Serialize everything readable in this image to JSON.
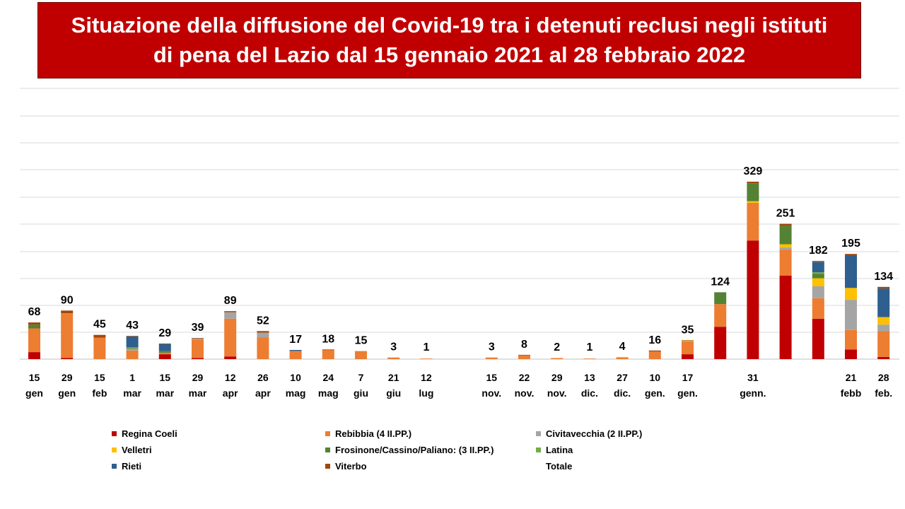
{
  "title": {
    "line1": "Situazione della diffusione del Covid-19 tra i detenuti reclusi negli istituti",
    "line2": "di pena del Lazio dal 15 gennaio 2021 al 28 febbraio 2022"
  },
  "colors": {
    "title_bg": "#c00000",
    "gridline": "#d9d9d9",
    "Regina Coeli": "#c00000",
    "Rebibbia (4 II.PP.)": "#ed7d31",
    "Civitavecchia (2 II.PP.)": "#a5a5a5",
    "Velletri": "#ffc000",
    "Frosinone/Cassino/Paliano: (3 II.PP.)": "#548235",
    "Latina": "#70ad47",
    "Rieti": "#2e5f8f",
    "Viterbo": "#9e480e",
    "Totale": "#ffffff"
  },
  "chart_data": {
    "type": "bar",
    "stacked": true,
    "ylim": [
      0,
      329
    ],
    "grid": true,
    "legend_position": "bottom",
    "categories": [
      "15 gen",
      "29 gen",
      "15 feb",
      "1 mar",
      "15 mar",
      "29 mar",
      "12 apr",
      "26 apr",
      "10 mag",
      "24 mag",
      "7 giu",
      "21 giu",
      "12 lug",
      "",
      "15 nov.",
      "22 nov.",
      "29 nov.",
      "13 dic.",
      "27 dic.",
      "10 gen.",
      "17 gen.",
      "",
      "31 genn.",
      "",
      "",
      "21 febb",
      "28 feb."
    ],
    "category_labels": [
      [
        "15",
        "gen"
      ],
      [
        "29",
        "gen"
      ],
      [
        "15",
        "feb"
      ],
      [
        "1",
        "mar"
      ],
      [
        "15",
        "mar"
      ],
      [
        "29",
        "mar"
      ],
      [
        "12",
        "apr"
      ],
      [
        "26",
        "apr"
      ],
      [
        "10",
        "mag"
      ],
      [
        "24",
        "mag"
      ],
      [
        "7",
        "giu"
      ],
      [
        "21",
        "giu"
      ],
      [
        "12",
        "lug"
      ],
      [
        "",
        ""
      ],
      [
        "15",
        "nov."
      ],
      [
        "22",
        "nov."
      ],
      [
        "29",
        "nov."
      ],
      [
        "13",
        "dic."
      ],
      [
        "27",
        "dic."
      ],
      [
        "10",
        "gen."
      ],
      [
        "17",
        "gen."
      ],
      [
        "",
        ""
      ],
      [
        "31",
        "genn."
      ],
      [
        "",
        ""
      ],
      [
        "",
        ""
      ],
      [
        "21",
        "febb"
      ],
      [
        "28",
        "feb."
      ]
    ],
    "totals": [
      68,
      90,
      45,
      43,
      29,
      39,
      89,
      52,
      17,
      18,
      15,
      3,
      1,
      null,
      3,
      8,
      2,
      1,
      4,
      16,
      35,
      124,
      329,
      251,
      182,
      195,
      134
    ],
    "series": [
      {
        "name": "Regina Coeli",
        "values": [
          13,
          2,
          0,
          0,
          9,
          2,
          5,
          0,
          0,
          0,
          0,
          0,
          0,
          0,
          0,
          0,
          0,
          0,
          0,
          0,
          9,
          60,
          220,
          155,
          75,
          18,
          4
        ]
      },
      {
        "name": "Rebibbia (4 II.PP.)",
        "values": [
          44,
          83,
          40,
          16,
          3,
          34,
          70,
          40,
          15,
          17,
          15,
          3,
          1,
          0,
          3,
          7,
          2,
          1,
          3,
          14,
          24,
          42,
          70,
          48,
          38,
          36,
          48
        ]
      },
      {
        "name": "Civitavecchia (2 II.PP.)",
        "values": [
          0,
          0,
          0,
          3,
          0,
          2,
          12,
          9,
          0,
          0,
          0,
          0,
          0,
          0,
          0,
          0,
          0,
          0,
          0,
          0,
          0,
          0,
          0,
          4,
          22,
          56,
          12
        ]
      },
      {
        "name": "Velletri",
        "values": [
          0,
          0,
          0,
          0,
          0,
          0,
          0,
          0,
          0,
          0,
          0,
          0,
          0,
          0,
          0,
          0,
          0,
          0,
          1,
          0,
          1,
          0,
          3,
          6,
          15,
          22,
          14
        ]
      },
      {
        "name": "Frosinone/Cassino/Paliano: (3 II.PP.)",
        "values": [
          7,
          0,
          0,
          1,
          3,
          0,
          0,
          0,
          0,
          0,
          0,
          0,
          0,
          0,
          0,
          0,
          0,
          0,
          0,
          0,
          0,
          22,
          33,
          34,
          8,
          0,
          0
        ]
      },
      {
        "name": "Latina",
        "values": [
          0,
          0,
          0,
          2,
          0,
          0,
          0,
          0,
          0,
          0,
          0,
          0,
          0,
          0,
          0,
          0,
          0,
          0,
          0,
          0,
          0,
          0,
          0,
          0,
          3,
          0,
          0
        ]
      },
      {
        "name": "Rieti",
        "values": [
          0,
          0,
          0,
          20,
          13,
          0,
          0,
          0,
          2,
          0,
          0,
          0,
          0,
          0,
          0,
          0,
          0,
          0,
          0,
          0,
          0,
          0,
          0,
          0,
          19,
          60,
          53
        ]
      },
      {
        "name": "Viterbo",
        "values": [
          4,
          5,
          5,
          1,
          1,
          1,
          2,
          3,
          0,
          1,
          0,
          0,
          0,
          0,
          0,
          1,
          0,
          0,
          0,
          2,
          1,
          0,
          3,
          4,
          2,
          3,
          3
        ]
      }
    ],
    "legend": [
      "Regina Coeli",
      "Rebibbia (4 II.PP.)",
      "Civitavecchia (2 II.PP.)",
      "Velletri",
      "Frosinone/Cassino/Paliano: (3 II.PP.)",
      "Latina",
      "Rieti",
      "Viterbo",
      "Totale"
    ]
  }
}
